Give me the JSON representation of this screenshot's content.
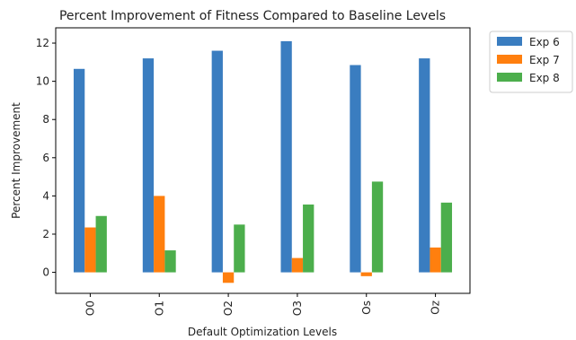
{
  "chart_data": {
    "type": "bar",
    "title": "Percent Improvement of Fitness Compared to Baseline Levels",
    "xlabel": "Default Optimization Levels",
    "ylabel": "Percent Improvement",
    "categories": [
      "O0",
      "O1",
      "O2",
      "O3",
      "Os",
      "Oz"
    ],
    "series": [
      {
        "name": "Exp 6",
        "color": "#3a7dc0",
        "values": [
          10.65,
          11.2,
          11.6,
          12.1,
          10.85,
          11.2
        ]
      },
      {
        "name": "Exp 7",
        "color": "#ff7f0e",
        "values": [
          2.35,
          4.0,
          -0.55,
          0.75,
          -0.2,
          1.3
        ]
      },
      {
        "name": "Exp 8",
        "color": "#4cae4c",
        "values": [
          2.95,
          1.15,
          2.5,
          3.55,
          4.75,
          3.65
        ]
      }
    ],
    "ylim": [
      -1.1,
      12.8
    ],
    "yticks": [
      0,
      2,
      4,
      6,
      8,
      10,
      12
    ],
    "legend_position": "outside-top-right",
    "grid": false
  }
}
